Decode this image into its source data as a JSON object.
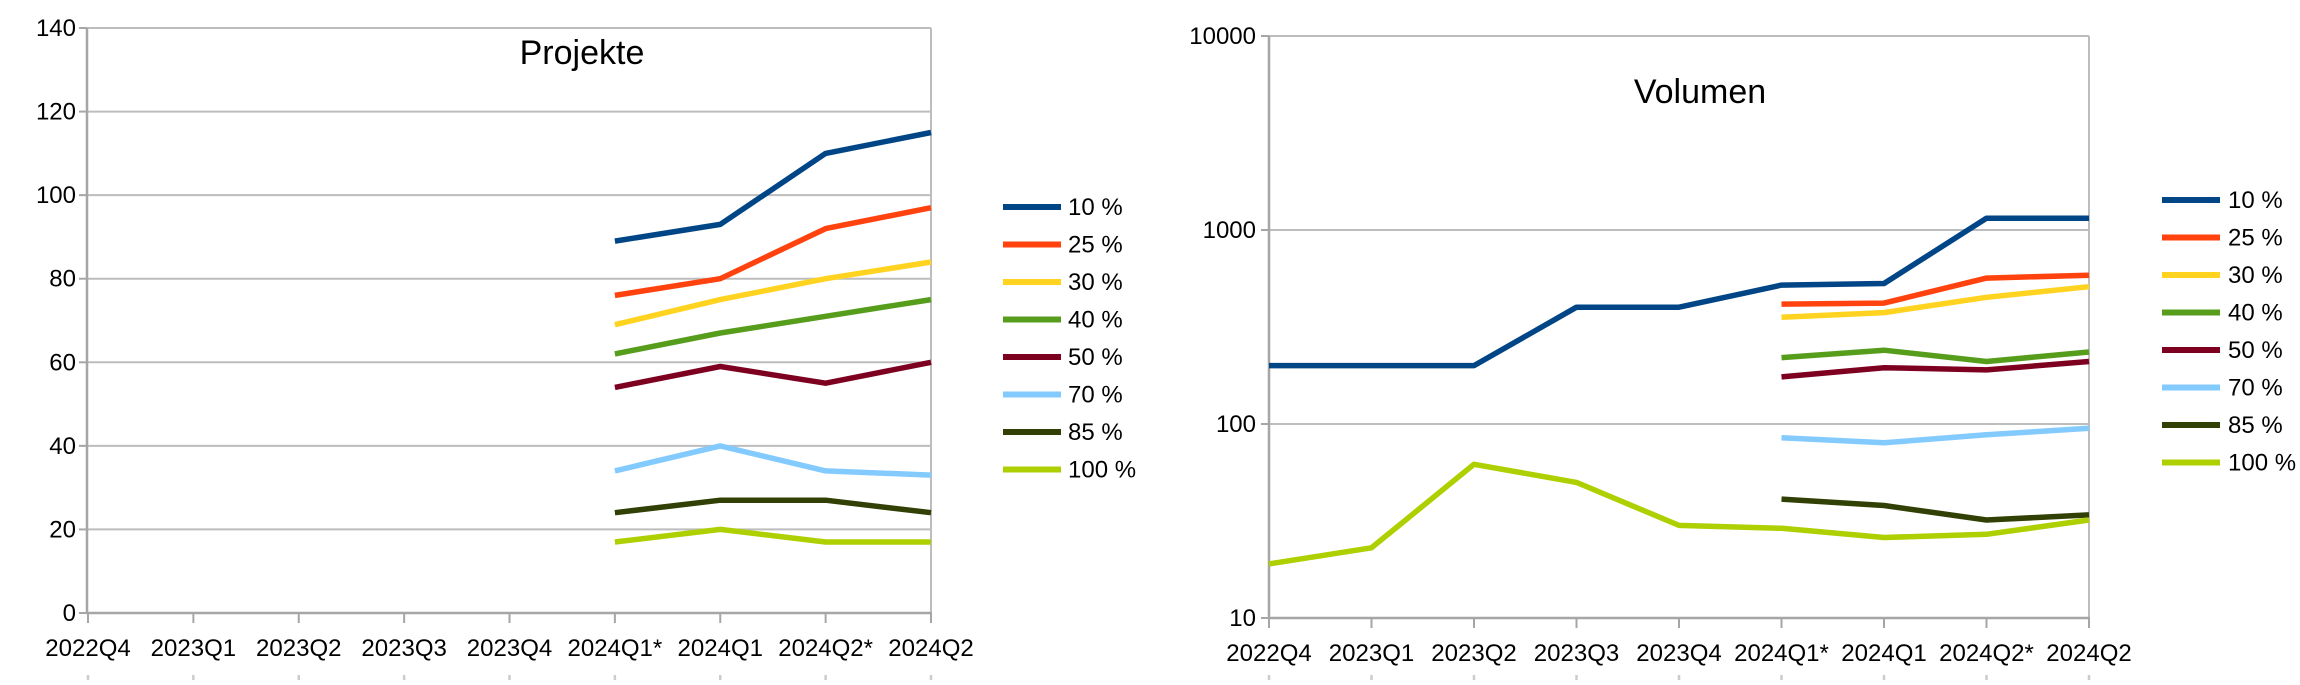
{
  "page": {
    "background": "#ffffff",
    "grid_color": "#bdbdbd",
    "axis_color": "#a6a6a6",
    "cutoff_tick_color": "#cccccc",
    "text_color": "#000000"
  },
  "chart_data": [
    {
      "type": "line",
      "title": "Projekte",
      "categories": [
        "2022Q4",
        "2023Q1",
        "2023Q2",
        "2023Q3",
        "2023Q4",
        "2024Q1*",
        "2024Q1",
        "2024Q2*",
        "2024Q2"
      ],
      "yaxis": {
        "scale": "linear",
        "min": 0,
        "max": 140,
        "step": 20,
        "tick_labels": [
          "0",
          "20",
          "40",
          "60",
          "80",
          "100",
          "120",
          "140"
        ]
      },
      "grid": true,
      "legend_position": "right",
      "series": [
        {
          "name": "10 %",
          "color": "#004586",
          "values": [
            null,
            null,
            null,
            null,
            null,
            89,
            93,
            110,
            115
          ]
        },
        {
          "name": "25 %",
          "color": "#ff420e",
          "values": [
            null,
            null,
            null,
            null,
            null,
            76,
            80,
            92,
            97
          ]
        },
        {
          "name": "30 %",
          "color": "#ffd320",
          "values": [
            null,
            null,
            null,
            null,
            null,
            69,
            75,
            80,
            84
          ]
        },
        {
          "name": "40 %",
          "color": "#579d1c",
          "values": [
            null,
            null,
            null,
            null,
            null,
            62,
            67,
            71,
            75
          ]
        },
        {
          "name": "50 %",
          "color": "#7e0021",
          "values": [
            null,
            null,
            null,
            null,
            null,
            54,
            59,
            55,
            60
          ]
        },
        {
          "name": "70 %",
          "color": "#83caff",
          "values": [
            null,
            null,
            null,
            null,
            null,
            34,
            40,
            34,
            33
          ]
        },
        {
          "name": "85 %",
          "color": "#314004",
          "values": [
            null,
            null,
            null,
            null,
            null,
            24,
            27,
            27,
            24
          ]
        },
        {
          "name": "100 %",
          "color": "#aecf00",
          "values": [
            null,
            null,
            null,
            null,
            null,
            17,
            20,
            17,
            17
          ]
        }
      ]
    },
    {
      "type": "line",
      "title": "Volumen",
      "categories": [
        "2022Q4",
        "2023Q1",
        "2023Q2",
        "2023Q3",
        "2023Q4",
        "2024Q1*",
        "2024Q1",
        "2024Q2*",
        "2024Q2"
      ],
      "yaxis": {
        "scale": "log",
        "min": 10,
        "max": 10000,
        "tick_labels": [
          "10",
          "100",
          "1000",
          "10000"
        ]
      },
      "grid": true,
      "legend_position": "right",
      "series": [
        {
          "name": "10 %",
          "color": "#004586",
          "values": [
            200,
            200,
            200,
            400,
            400,
            520,
            530,
            1150,
            1150
          ]
        },
        {
          "name": "25 %",
          "color": "#ff420e",
          "values": [
            null,
            null,
            null,
            null,
            null,
            415,
            420,
            565,
            585
          ]
        },
        {
          "name": "30 %",
          "color": "#ffd320",
          "values": [
            null,
            null,
            null,
            null,
            null,
            355,
            375,
            450,
            510
          ]
        },
        {
          "name": "40 %",
          "color": "#579d1c",
          "values": [
            null,
            null,
            null,
            null,
            null,
            220,
            240,
            210,
            235
          ]
        },
        {
          "name": "50 %",
          "color": "#7e0021",
          "values": [
            null,
            null,
            null,
            null,
            null,
            175,
            195,
            190,
            210
          ]
        },
        {
          "name": "70 %",
          "color": "#83caff",
          "values": [
            null,
            null,
            null,
            null,
            null,
            85,
            80,
            88,
            95
          ]
        },
        {
          "name": "85 %",
          "color": "#314004",
          "values": [
            null,
            null,
            null,
            null,
            null,
            41,
            38,
            32,
            34
          ]
        },
        {
          "name": "100 %",
          "color": "#aecf00",
          "values": [
            19,
            23,
            62,
            50,
            30,
            29,
            26,
            27,
            32
          ]
        }
      ]
    }
  ]
}
